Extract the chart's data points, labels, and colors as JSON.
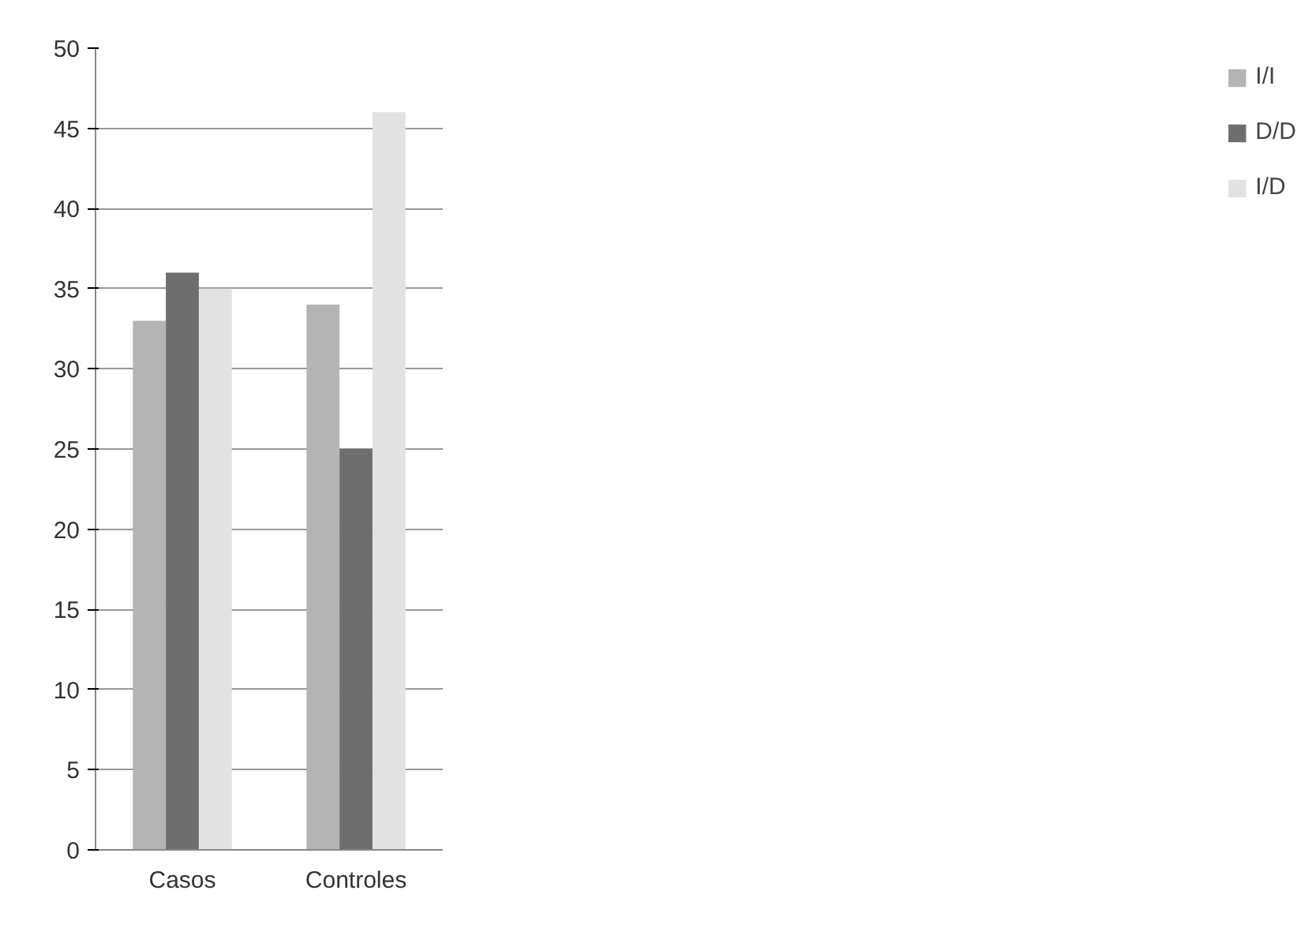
{
  "chart_data": {
    "type": "bar",
    "categories": [
      "Casos",
      "Controles"
    ],
    "series": [
      {
        "name": "I/I",
        "color": "#b4b4b4",
        "values": [
          33,
          34
        ]
      },
      {
        "name": "D/D",
        "color": "#6e6e6e",
        "values": [
          36,
          25
        ]
      },
      {
        "name": "I/D",
        "color": "#e2e2e2",
        "values": [
          35,
          46
        ]
      }
    ],
    "ylim": [
      0,
      50
    ],
    "yticks": [
      0,
      5,
      10,
      15,
      20,
      25,
      30,
      35,
      40,
      45,
      50
    ],
    "grid": "y",
    "legend": "right"
  }
}
